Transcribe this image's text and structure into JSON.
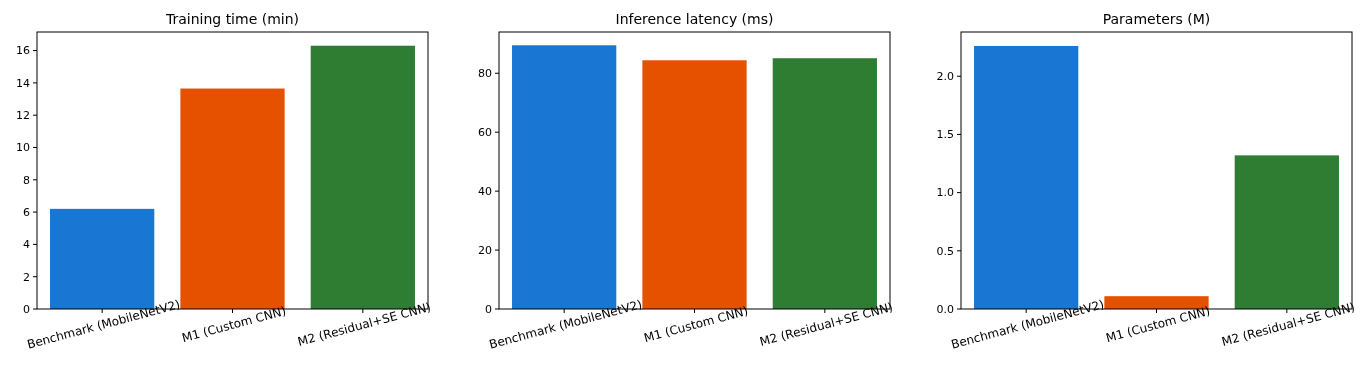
{
  "chart_data": [
    {
      "type": "bar",
      "title": "Training time (min)",
      "categories": [
        "Benchmark (MobileNetV2)",
        "M1 (Custom CNN)",
        "M2 (Residual+SE CNN)"
      ],
      "values": [
        6.2,
        13.65,
        16.3
      ],
      "colors": [
        "#1976d2",
        "#e65100",
        "#2e7d32"
      ],
      "ylim": [
        0,
        17.15
      ],
      "yticks": [
        0,
        2,
        4,
        6,
        8,
        10,
        12,
        14,
        16
      ]
    },
    {
      "type": "bar",
      "title": "Inference latency (ms)",
      "categories": [
        "Benchmark (MobileNetV2)",
        "M1 (Custom CNN)",
        "M2 (Residual+SE CNN)"
      ],
      "values": [
        89.5,
        84.4,
        85.1
      ],
      "colors": [
        "#1976d2",
        "#e65100",
        "#2e7d32"
      ],
      "ylim": [
        0,
        94
      ],
      "yticks": [
        0,
        20,
        40,
        60,
        80
      ]
    },
    {
      "type": "bar",
      "title": "Parameters (M)",
      "categories": [
        "Benchmark (MobileNetV2)",
        "M1 (Custom CNN)",
        "M2 (Residual+SE CNN)"
      ],
      "values": [
        2.26,
        0.11,
        1.32
      ],
      "colors": [
        "#1976d2",
        "#e65100",
        "#2e7d32"
      ],
      "ylim": [
        0,
        2.38
      ],
      "yticks": [
        {
          "value": 0,
          "label": "0.0"
        },
        {
          "value": 0.5,
          "label": "0.5"
        },
        {
          "value": 1,
          "label": "1.0"
        },
        {
          "value": 1.5,
          "label": "1.5"
        },
        {
          "value": 2,
          "label": "2.0"
        }
      ]
    }
  ]
}
